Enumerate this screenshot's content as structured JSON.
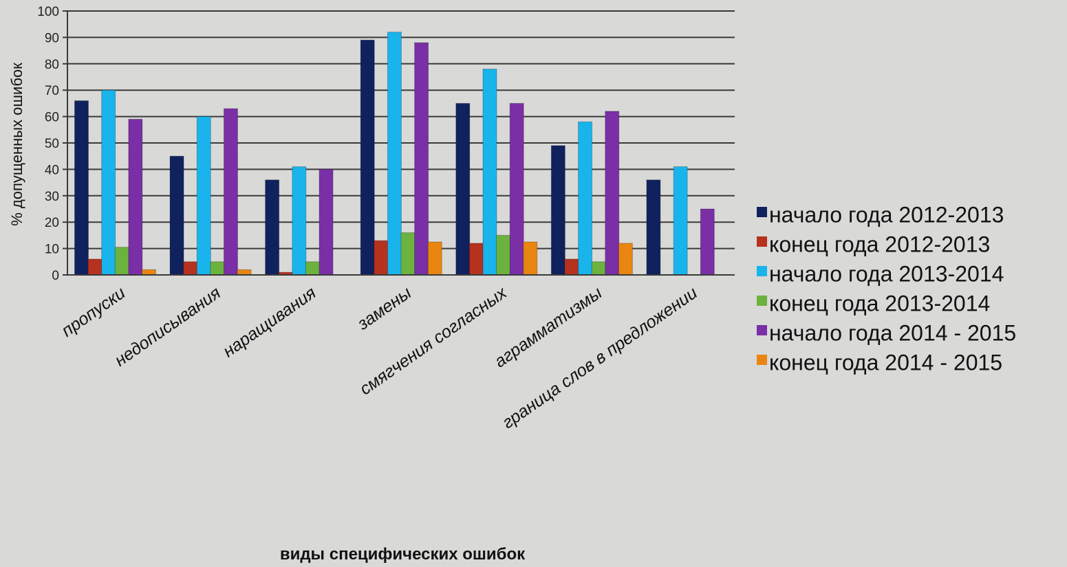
{
  "chart_data": {
    "type": "bar",
    "title": "",
    "xlabel": "виды специфических ошибок",
    "ylabel": "% допущенных ошибок",
    "ylim": [
      0,
      100
    ],
    "yticks": [
      "0",
      "10",
      "20",
      "30",
      "40",
      "50",
      "60",
      "70",
      "80",
      "90",
      "100"
    ],
    "grid": true,
    "legend_position": "right",
    "categories": [
      "пропуски",
      "недописывания",
      "наращивания",
      "замены",
      "смягчения согласных",
      "аграмматизмы",
      "граница слов в предложении"
    ],
    "series": [
      {
        "name": "начало года 2012-2013",
        "color": "#10225e",
        "values": [
          66,
          45,
          36,
          89,
          65,
          49,
          36
        ]
      },
      {
        "name": "конец года 2012-2013",
        "color": "#b7311f",
        "values": [
          6,
          5,
          1,
          13,
          12,
          6,
          0
        ]
      },
      {
        "name": "начало года 2013-2014",
        "color": "#19b4ec",
        "values": [
          70,
          60,
          41,
          92,
          78,
          58,
          41
        ]
      },
      {
        "name": "конец года 2013-2014",
        "color": "#6cb23f",
        "values": [
          10.5,
          5,
          5,
          16,
          15,
          5,
          0
        ]
      },
      {
        "name": "начало года 2014 - 2015",
        "color": "#7a2fa6",
        "values": [
          59,
          63,
          40,
          88,
          65,
          62,
          25
        ]
      },
      {
        "name": "конец года 2014 - 2015",
        "color": "#e88611",
        "values": [
          2,
          2,
          0,
          12.5,
          12.5,
          12,
          0
        ]
      }
    ]
  }
}
